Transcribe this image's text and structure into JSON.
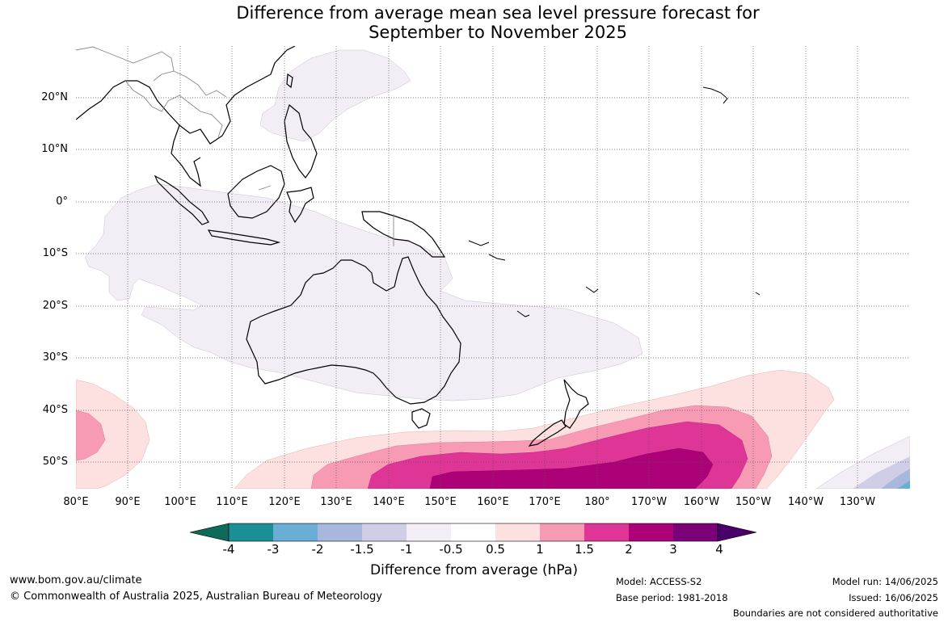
{
  "title_line1": "Difference from average mean sea level pressure forecast for",
  "title_line2": "September to November 2025",
  "lat_labels": [
    "20°N",
    "10°N",
    "0°",
    "10°S",
    "20°S",
    "30°S",
    "40°S",
    "50°S"
  ],
  "lon_labels": [
    "80°E",
    "90°E",
    "100°E",
    "110°E",
    "120°E",
    "130°E",
    "140°E",
    "150°E",
    "160°E",
    "170°E",
    "180°",
    "170°W",
    "160°W",
    "150°W",
    "140°W",
    "130°W"
  ],
  "colorbar": {
    "title": "Difference from average (hPa)",
    "tick_labels": [
      "-4",
      "-3",
      "-2",
      "-1.5",
      "-1",
      "-0.5",
      "0.5",
      "1",
      "1.5",
      "2",
      "3",
      "4"
    ],
    "colors": {
      "below_min": "#0e6b5a",
      "-4_to_-3": "#1a9096",
      "-3_to_-2": "#6aaed6",
      "-2_to_-1.5": "#a8b8dc",
      "-1.5_to_-1": "#cfcee6",
      "-1_to_-0.5": "#f3eef5",
      "-0.5_to_0.5": "#ffffff",
      "0.5_to_1": "#fde0e0",
      "1_to_1.5": "#f79bb4",
      "1.5_to_2": "#de3596",
      "2_to_3": "#ad0277",
      "3_to_4": "#7a0177",
      "above_max": "#49006a"
    }
  },
  "footer": {
    "website": "www.bom.gov.au/climate",
    "copyright": "© Commonwealth of Australia 2025, Australian Bureau of Meteorology",
    "model": "Model: ACCESS-S2",
    "base_period": "Base period: 1981-2018",
    "model_run": "Model run: 14/06/2025",
    "issued": "Issued: 16/06/2025",
    "disclaimer": "Boundaries are not considered authoritative"
  }
}
